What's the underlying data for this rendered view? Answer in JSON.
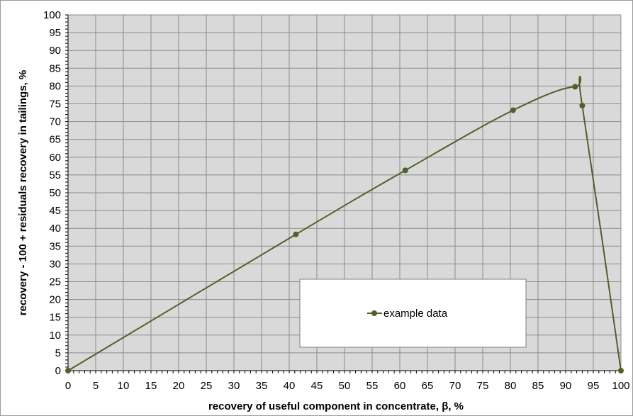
{
  "chart_data": {
    "type": "line",
    "title": "",
    "xlabel": "recovery of useful component in concentrate, β,  %",
    "ylabel": "recovery - 100 + residuals recovery in tailings, %",
    "xlim": [
      0,
      100
    ],
    "ylim": [
      0,
      100
    ],
    "x_ticks": [
      0,
      5,
      10,
      15,
      20,
      25,
      30,
      35,
      40,
      45,
      50,
      55,
      60,
      65,
      70,
      75,
      80,
      85,
      90,
      95,
      100
    ],
    "y_ticks": [
      0,
      5,
      10,
      15,
      20,
      25,
      30,
      35,
      40,
      45,
      50,
      55,
      60,
      65,
      70,
      75,
      80,
      85,
      90,
      95,
      100
    ],
    "grid": true,
    "minor_ticks": true,
    "legend_position": "bottom-center",
    "series": [
      {
        "name": "example data",
        "color": "#4f6228",
        "marker": "circle",
        "smooth": true,
        "x": [
          0,
          41.2,
          61,
          80.5,
          91.7,
          93,
          100
        ],
        "y": [
          0,
          38.3,
          56.3,
          73.2,
          79.8,
          74.5,
          0
        ]
      }
    ]
  },
  "colors": {
    "plot_background": "#d9d9d9",
    "grid": "#8c8c8c",
    "series": "#4f6228"
  }
}
